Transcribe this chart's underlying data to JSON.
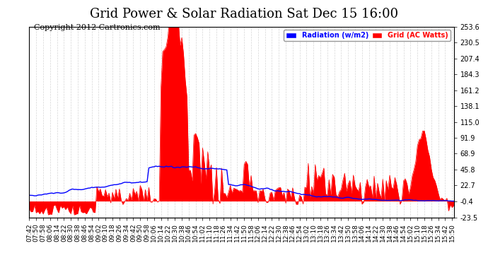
{
  "title": "Grid Power & Solar Radiation Sat Dec 15 16:00",
  "copyright": "Copyright 2012 Cartronics.com",
  "legend_radiation": "Radiation (w/m2)",
  "legend_grid": "Grid (AC Watts)",
  "ylabel_right_ticks": [
    253.6,
    230.5,
    207.4,
    184.3,
    161.2,
    138.1,
    115.0,
    91.9,
    68.9,
    45.8,
    22.7,
    -0.4,
    -23.5
  ],
  "ylim": [
    -23.5,
    253.6
  ],
  "background_color": "#ffffff",
  "plot_bg_color": "#ffffff",
  "grid_color": "#cccccc",
  "red_color": "#ff0000",
  "blue_color": "#0000ff",
  "title_fontsize": 13,
  "tick_fontsize": 7,
  "copyright_fontsize": 8
}
